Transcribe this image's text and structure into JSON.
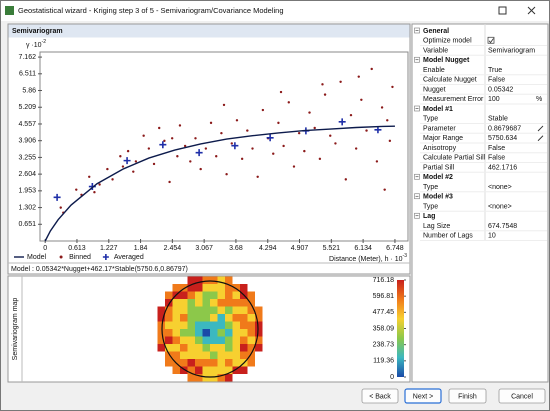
{
  "window": {
    "title": "Geostatistical wizard - Kriging step 3 of 5 - Semivariogram/Covariance Modeling"
  },
  "chart_data": {
    "type": "scatter",
    "title": "Semivariogram",
    "y_label": "γ ·10",
    "y_label_exp": "-2",
    "x_label": "Distance (Meter), h · 10",
    "x_label_exp": "-3",
    "xlim": [
      -0.1,
      7.0
    ],
    "xticks": [
      0,
      0.613,
      1.227,
      1.84,
      2.454,
      3.067,
      3.68,
      4.294,
      4.907,
      5.521,
      6.134,
      6.748
    ],
    "ylim": [
      0,
      7.36
    ],
    "yticks": [
      0.651,
      1.302,
      1.953,
      2.604,
      3.255,
      3.906,
      4.557,
      5.209,
      5.86,
      6.511,
      7.162
    ],
    "grid": false,
    "series": [
      {
        "name": "Model",
        "type": "line",
        "color": "#0d1b4c",
        "x": [
          0,
          0.1,
          0.25,
          0.5,
          1,
          1.5,
          2,
          2.5,
          3,
          3.5,
          4,
          4.5,
          5,
          5.5,
          6,
          6.5,
          6.748
        ],
        "values": [
          0,
          0.39,
          0.83,
          1.4,
          2.23,
          2.8,
          3.23,
          3.54,
          3.78,
          3.97,
          4.1,
          4.21,
          4.3,
          4.36,
          4.42,
          4.46,
          4.47
        ]
      },
      {
        "name": "Binned",
        "type": "dot",
        "color": "#8b1a1a",
        "x": [
          0.3,
          0.35,
          0.6,
          0.7,
          0.85,
          0.95,
          1.05,
          1.2,
          1.3,
          1.45,
          1.5,
          1.6,
          1.7,
          1.75,
          1.9,
          2.0,
          2.1,
          2.2,
          2.3,
          2.4,
          2.45,
          2.55,
          2.6,
          2.7,
          2.8,
          2.9,
          3.0,
          3.1,
          3.2,
          3.3,
          3.4,
          3.5,
          3.6,
          3.7,
          3.8,
          3.9,
          4.0,
          4.1,
          4.2,
          4.3,
          4.4,
          4.5,
          4.6,
          4.7,
          4.8,
          4.9,
          5.0,
          5.1,
          5.2,
          5.3,
          5.4,
          5.5,
          5.6,
          5.7,
          5.8,
          5.9,
          6.0,
          6.1,
          6.2,
          6.3,
          6.4,
          6.5,
          6.55,
          6.6,
          6.7,
          6.05,
          5.35,
          4.55,
          3.45,
          6.65
        ],
        "values": [
          1.3,
          1.1,
          2.0,
          1.8,
          2.5,
          1.9,
          2.2,
          2.8,
          2.4,
          3.3,
          2.9,
          3.5,
          2.7,
          3.1,
          4.1,
          3.6,
          3.0,
          4.4,
          3.9,
          2.3,
          4.0,
          3.3,
          4.5,
          3.7,
          3.1,
          4.0,
          2.8,
          3.6,
          4.6,
          3.3,
          4.2,
          2.6,
          3.8,
          4.7,
          3.2,
          4.3,
          3.6,
          2.5,
          5.1,
          4.0,
          3.4,
          4.6,
          3.7,
          5.4,
          2.9,
          4.2,
          3.5,
          5.0,
          4.4,
          3.2,
          5.7,
          4.1,
          3.8,
          6.2,
          2.4,
          4.9,
          3.6,
          5.5,
          4.3,
          6.7,
          3.1,
          5.2,
          2.0,
          4.7,
          6.0,
          6.4,
          6.1,
          5.8,
          5.3,
          3.9
        ]
      },
      {
        "name": "Averaged",
        "type": "cross",
        "color": "#1f2fa8",
        "x": [
          0.23,
          0.91,
          1.58,
          2.27,
          2.97,
          3.66,
          4.34,
          5.03,
          5.73,
          6.42
        ],
        "values": [
          1.7,
          2.12,
          3.13,
          3.75,
          3.44,
          3.71,
          4.02,
          4.29,
          4.64,
          4.33
        ]
      }
    ],
    "model_text": "Model : 0.05342*Nugget+462.17*Stable(5750.6,0.86797)"
  },
  "map": {
    "title": "Semivariogram map",
    "colorbar_lim": [
      0,
      716.18
    ],
    "colorbar_ticks": [
      716.18,
      596.81,
      477.45,
      358.09,
      238.73,
      119.36,
      0
    ]
  },
  "properties": {
    "sections": [
      {
        "name": "General",
        "rows": [
          {
            "label": "Optimize model",
            "checkbox": true
          },
          {
            "label": "Variable",
            "value": "Semivariogram"
          }
        ]
      },
      {
        "name": "Model Nugget",
        "rows": [
          {
            "label": "Enable",
            "value": "True"
          },
          {
            "label": "Calculate Nugget",
            "value": "False"
          },
          {
            "label": "Nugget",
            "value": "0.05342"
          },
          {
            "label": "Measurement Error",
            "value": "100",
            "unit": "%"
          }
        ]
      },
      {
        "name": "Model #1",
        "rows": [
          {
            "label": "Type",
            "value": "Stable"
          },
          {
            "label": "Parameter",
            "value": "0.8679687",
            "editable": true
          },
          {
            "label": "Major Range",
            "value": "5750.634",
            "editable": true
          },
          {
            "label": "Anisotropy",
            "value": "False"
          },
          {
            "label": "Calculate Partial Sill",
            "value": "False"
          },
          {
            "label": "Partial Sill",
            "value": "462.1716"
          }
        ]
      },
      {
        "name": "Model #2",
        "rows": [
          {
            "label": "Type",
            "value": "<none>"
          }
        ]
      },
      {
        "name": "Model #3",
        "rows": [
          {
            "label": "Type",
            "value": "<none>"
          }
        ]
      },
      {
        "name": "Lag",
        "rows": [
          {
            "label": "Lag Size",
            "value": "674.7548"
          },
          {
            "label": "Number of Lags",
            "value": "10"
          }
        ]
      }
    ]
  },
  "buttons": [
    "< Back",
    "Next >",
    "Finish",
    "Cancel"
  ]
}
